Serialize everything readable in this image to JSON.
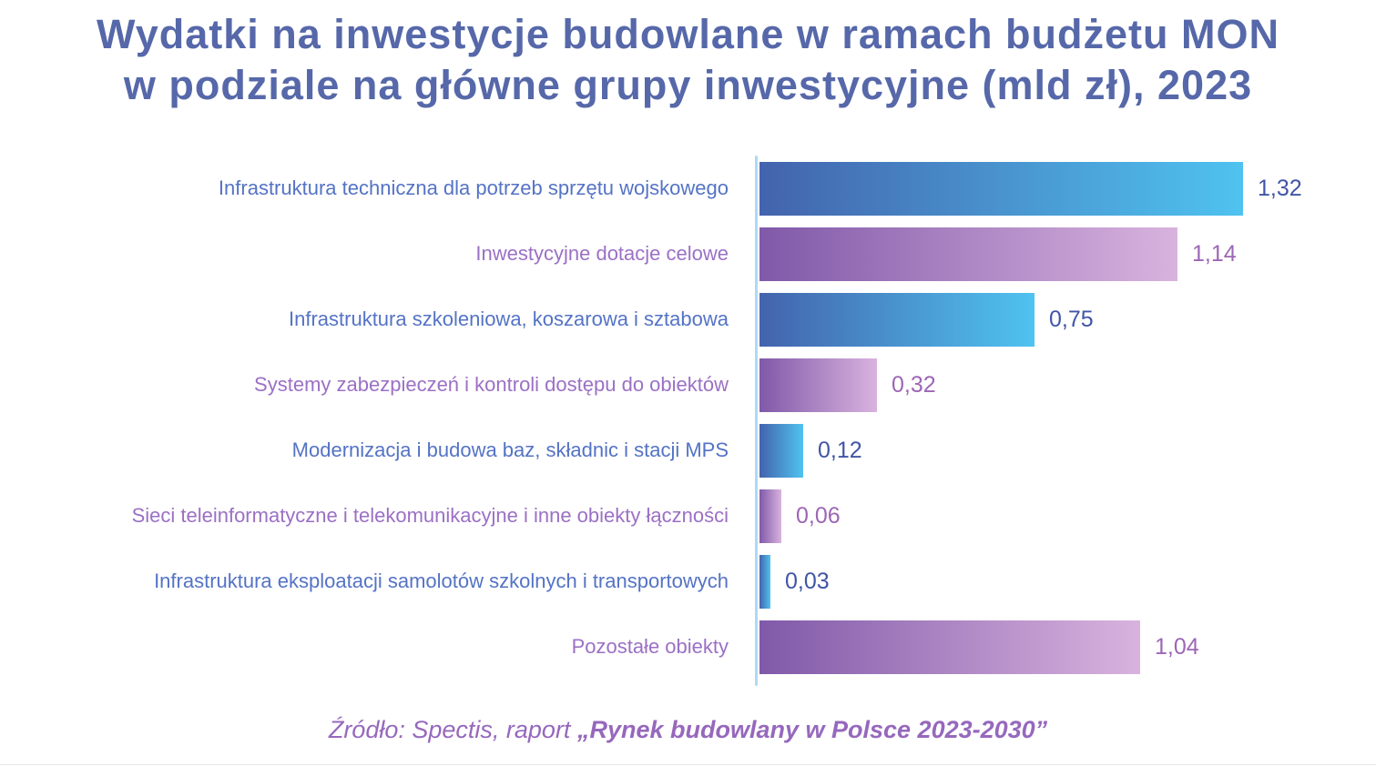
{
  "title": {
    "line1": "Wydatki na inwestycje budowlane w ramach budżetu MON",
    "line2": "w podziale na główne grupy inwestycyjne (mld zł), 2023"
  },
  "footer": {
    "source_prefix": "Źródło: Spectis, raport ",
    "source_report": "„Rynek budowlany w Polsce 2023-2030”"
  },
  "colors": {
    "title_text": "#5668A9",
    "axis_line": "#ADD9F4",
    "footer_text": "#9668BD",
    "blue": {
      "bar_start": "#4363AD",
      "bar_end": "#4FC3F0",
      "label": "#5473C5",
      "value": "#4055A6"
    },
    "purple": {
      "bar_start": "#8059A9",
      "bar_end": "#D9B3DE",
      "label": "#9B70C5",
      "value": "#9C66B5"
    }
  },
  "chart_data": {
    "type": "bar",
    "orientation": "horizontal",
    "title": "Wydatki na inwestycje budowlane w ramach budżetu MON w podziale na główne grupy inwestycyjne (mld zł), 2023",
    "unit": "mld zł",
    "year": "2023",
    "x_max": 1.32,
    "grid": false,
    "legend": false,
    "categories": [
      "Infrastruktura techniczna dla potrzeb sprzętu wojskowego",
      "Inwestycyjne dotacje celowe",
      "Infrastruktura szkoleniowa, koszarowa i sztabowa",
      "Systemy zabezpieczeń i kontroli dostępu do obiektów",
      "Modernizacja i budowa baz, składnic i stacji MPS",
      "Sieci teleinformatyczne i telekomunikacyjne i inne obiekty łączności",
      "Infrastruktura eksploatacji samolotów szkolnych i transportowych",
      "Pozostałe obiekty"
    ],
    "values": [
      1.32,
      1.14,
      0.75,
      0.32,
      0.12,
      0.06,
      0.03,
      1.04
    ],
    "value_labels": [
      "1,32",
      "1,14",
      "0,75",
      "0,32",
      "0,12",
      "0,06",
      "0,03",
      "1,04"
    ],
    "row_palette": [
      "blue",
      "purple",
      "blue",
      "purple",
      "blue",
      "purple",
      "blue",
      "purple"
    ],
    "source": "Źródło: Spectis, raport „Rynek budowlany w Polsce 2023-2030”"
  }
}
